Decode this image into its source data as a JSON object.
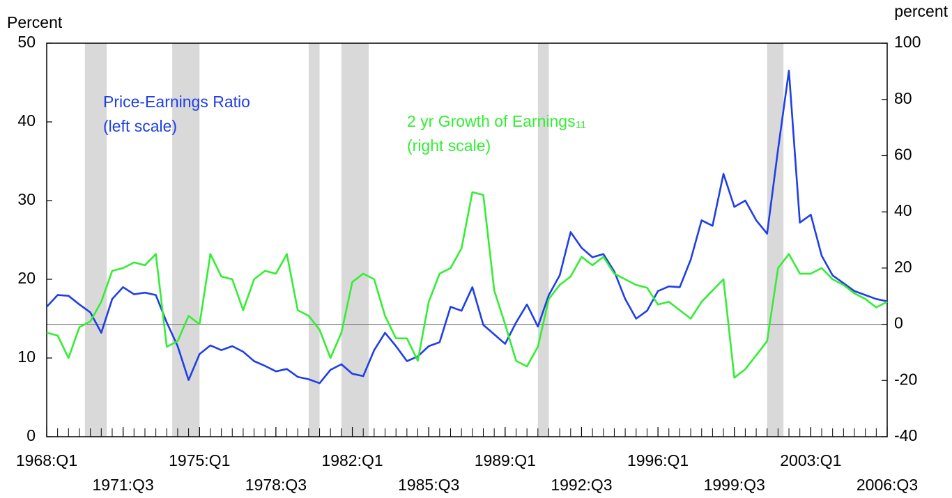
{
  "chart_data": {
    "type": "line",
    "y_label": "Percent",
    "y2_label": "percent",
    "x": [
      1968.0,
      1968.5,
      1969.0,
      1969.5,
      1970.0,
      1970.5,
      1971.0,
      1971.5,
      1972.0,
      1972.5,
      1973.0,
      1973.5,
      1974.0,
      1974.5,
      1975.0,
      1975.5,
      1976.0,
      1976.5,
      1977.0,
      1977.5,
      1978.0,
      1978.5,
      1979.0,
      1979.5,
      1980.0,
      1980.5,
      1981.0,
      1981.5,
      1982.0,
      1982.5,
      1983.0,
      1983.5,
      1984.0,
      1984.5,
      1985.0,
      1985.5,
      1986.0,
      1986.5,
      1987.0,
      1987.5,
      1988.0,
      1988.5,
      1989.0,
      1989.5,
      1990.0,
      1990.5,
      1991.0,
      1991.5,
      1992.0,
      1992.5,
      1993.0,
      1993.5,
      1994.0,
      1994.5,
      1995.0,
      1995.5,
      1996.0,
      1996.5,
      1997.0,
      1997.5,
      1998.0,
      1998.5,
      1999.0,
      1999.5,
      2000.0,
      2000.5,
      2001.0,
      2001.5,
      2002.0,
      2002.5,
      2003.0,
      2003.5,
      2004.0,
      2004.5,
      2005.0,
      2005.5,
      2006.0,
      2006.5
    ],
    "series": [
      {
        "name": "Price-Earnings Ratio",
        "scale_label": "(left scale)",
        "color": "#1f3fe6",
        "axis": "y",
        "values": [
          16.5,
          18.0,
          17.9,
          16.8,
          15.8,
          13.2,
          17.5,
          19.0,
          18.1,
          18.3,
          18.0,
          14.5,
          11.5,
          7.2,
          10.5,
          11.6,
          11.0,
          11.5,
          10.8,
          9.6,
          9.0,
          8.3,
          8.6,
          7.6,
          7.3,
          6.8,
          8.5,
          9.2,
          8.0,
          7.7,
          11.0,
          13.2,
          11.5,
          9.6,
          10.2,
          11.5,
          12.0,
          16.5,
          16.0,
          19.0,
          14.2,
          13.0,
          11.8,
          14.5,
          16.8,
          14.0,
          18.0,
          20.5,
          26.0,
          24.0,
          22.8,
          23.2,
          21.0,
          17.5,
          15.0,
          16.0,
          18.5,
          19.1,
          19.0,
          22.5,
          27.5,
          26.8,
          33.4,
          29.2,
          30.0,
          27.5,
          25.8,
          36.5,
          46.5,
          27.2,
          28.2,
          23.0,
          20.5,
          19.5,
          18.5,
          18.0,
          17.5,
          17.2
        ]
      },
      {
        "name": "2 yr Growth of Earnings",
        "footnote": "11",
        "scale_label": "(right scale)",
        "color": "#33ee33",
        "axis": "y2",
        "values": [
          -3,
          -4,
          -12,
          -1,
          1,
          8,
          19,
          20,
          22,
          21,
          25,
          -8,
          -6,
          3,
          0,
          25,
          17,
          16,
          5,
          16,
          19,
          18,
          25,
          5,
          3,
          -2,
          -12,
          -3,
          15,
          18,
          16,
          3,
          -5,
          -5,
          -13,
          8,
          18,
          20,
          27,
          47,
          46,
          12,
          0,
          -13,
          -15,
          -8,
          9,
          14,
          17,
          24,
          21,
          24,
          18,
          16,
          14,
          13,
          7,
          8,
          5,
          2,
          8,
          12,
          16,
          -19,
          -16,
          -11,
          -6,
          20,
          25,
          18,
          18,
          20,
          16,
          14,
          11,
          9,
          6,
          8
        ]
      }
    ],
    "recessions": [
      [
        1969.75,
        1970.75
      ],
      [
        1973.75,
        1975.0
      ],
      [
        1980.0,
        1980.5
      ],
      [
        1981.5,
        1982.75
      ],
      [
        1990.5,
        1991.0
      ],
      [
        2001.0,
        2001.75
      ]
    ],
    "xlim": [
      1968.0,
      2006.5
    ],
    "xticks": [
      {
        "value": 1968.0,
        "label": "1968:Q1"
      },
      {
        "value": 1971.5,
        "label": "1971:Q3"
      },
      {
        "value": 1975.0,
        "label": "1975:Q1"
      },
      {
        "value": 1978.5,
        "label": "1978:Q3"
      },
      {
        "value": 1982.0,
        "label": "1982:Q1"
      },
      {
        "value": 1985.5,
        "label": "1985:Q3"
      },
      {
        "value": 1989.0,
        "label": "1989:Q1"
      },
      {
        "value": 1992.5,
        "label": "1992:Q3"
      },
      {
        "value": 1996.0,
        "label": "1996:Q1"
      },
      {
        "value": 1999.5,
        "label": "1999:Q3"
      },
      {
        "value": 2003.0,
        "label": "2003:Q1"
      },
      {
        "value": 2006.5,
        "label": "2006:Q3"
      }
    ],
    "ylim": [
      0,
      50
    ],
    "yticks": [
      0,
      10,
      20,
      30,
      40,
      50
    ],
    "y2lim": [
      -40,
      100
    ],
    "y2ticks": [
      -40,
      -20,
      0,
      20,
      40,
      60,
      80,
      100
    ]
  }
}
